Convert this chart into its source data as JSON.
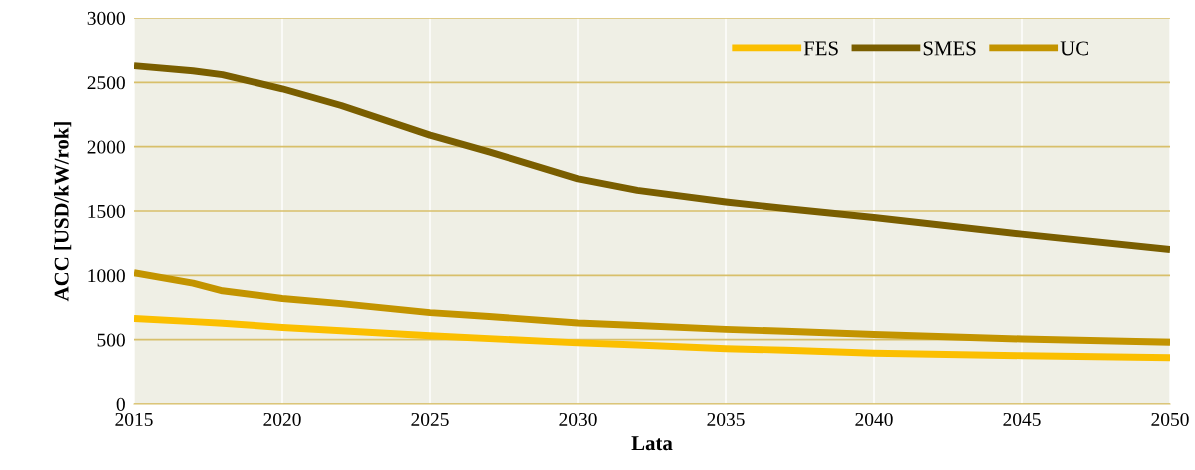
{
  "chart_data": {
    "type": "line",
    "xlabel": "Lata",
    "ylabel": "ACC [USD/kW/rok]",
    "x": [
      2015,
      2017,
      2018,
      2020,
      2022,
      2025,
      2027,
      2030,
      2032,
      2035,
      2037,
      2040,
      2045,
      2050
    ],
    "series": [
      {
        "name": "FES",
        "color": "#fbbf00",
        "values": [
          665,
          640,
          628,
          595,
          570,
          530,
          508,
          475,
          458,
          430,
          418,
          395,
          375,
          360
        ]
      },
      {
        "name": "SMES",
        "color": "#7a5e00",
        "values": [
          2630,
          2590,
          2560,
          2450,
          2320,
          2090,
          1960,
          1750,
          1660,
          1570,
          1520,
          1450,
          1320,
          1200
        ]
      },
      {
        "name": "UC",
        "color": "#c39400",
        "values": [
          1020,
          940,
          880,
          820,
          780,
          710,
          680,
          630,
          610,
          580,
          565,
          540,
          505,
          480
        ]
      }
    ],
    "xlim": [
      2015,
      2050
    ],
    "xticks": [
      2015,
      2020,
      2025,
      2030,
      2035,
      2040,
      2045,
      2050
    ],
    "ylim": [
      0,
      3000
    ],
    "yticks": [
      0,
      500,
      1000,
      1500,
      2000,
      2500,
      3000
    ],
    "grid": true,
    "legend": "top right",
    "marker": "none",
    "line_style": "solid"
  }
}
